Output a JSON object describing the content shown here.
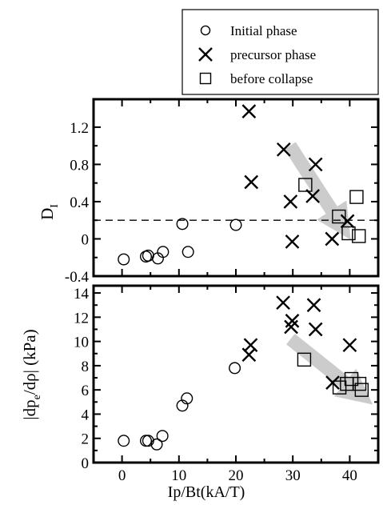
{
  "chart_data": [
    {
      "type": "scatter",
      "title": "",
      "xlabel": "",
      "ylabel": "D_I",
      "ylabel_main": "D",
      "ylabel_sub": "I",
      "xlim": [
        -5,
        45
      ],
      "ylim": [
        -0.4,
        1.5
      ],
      "xticks": [
        0,
        10,
        20,
        30,
        40
      ],
      "yticks": [
        -0.4,
        0,
        0.4,
        0.8,
        1.2
      ],
      "ytick_labels": [
        "-0.4",
        "0",
        "0.4",
        "0.8",
        "1.2"
      ],
      "reference_line": {
        "y": 0.2,
        "style": "dashed"
      },
      "arrow": {
        "from": [
          29.5,
          1.0
        ],
        "to": [
          38.5,
          0.15
        ],
        "color": "#cccccc"
      },
      "series": [
        {
          "name": "Initial phase",
          "marker": "circle",
          "x": [
            0.3,
            4.2,
            4.6,
            6.3,
            7.2,
            10.6,
            11.6,
            20.0
          ],
          "y": [
            -0.22,
            -0.19,
            -0.18,
            -0.21,
            -0.14,
            0.16,
            -0.14,
            0.15
          ]
        },
        {
          "name": "precursor phase",
          "marker": "x",
          "x": [
            22.3,
            22.7,
            28.4,
            29.6,
            29.9,
            33.5,
            34.0,
            36.9,
            39.6
          ],
          "y": [
            1.37,
            0.61,
            0.96,
            0.4,
            -0.03,
            0.46,
            0.8,
            0.0,
            0.19
          ]
        },
        {
          "name": "before collapse",
          "marker": "square",
          "x": [
            32.2,
            38.1,
            39.8,
            41.2,
            41.6
          ],
          "y": [
            0.58,
            0.24,
            0.06,
            0.45,
            0.03
          ]
        }
      ]
    },
    {
      "type": "scatter",
      "title": "",
      "xlabel": "Ip/Bt(kA/T)",
      "ylabel": "|dp_e/dρ| (kPa)",
      "ylabel_part1": "|dp",
      "ylabel_sub": "e",
      "ylabel_part2": "/dρ| (kPa)",
      "xlim": [
        -5,
        45
      ],
      "ylim": [
        0,
        14.6
      ],
      "xticks": [
        0,
        10,
        20,
        30,
        40
      ],
      "xtick_labels": [
        "0",
        "10",
        "20",
        "30",
        "40"
      ],
      "yticks": [
        0,
        2,
        4,
        6,
        8,
        10,
        12,
        14
      ],
      "ytick_labels": [
        "0",
        "2",
        "4",
        "6",
        "8",
        "10",
        "12",
        "14"
      ],
      "arrow": {
        "from": [
          29.6,
          10.2
        ],
        "to": [
          41.6,
          5.7
        ],
        "color": "#cccccc"
      },
      "series": [
        {
          "name": "Initial phase",
          "marker": "circle",
          "x": [
            0.3,
            4.2,
            4.6,
            6.1,
            7.1,
            10.6,
            11.4,
            19.8
          ],
          "y": [
            1.8,
            1.8,
            1.8,
            1.5,
            2.2,
            4.7,
            5.3,
            7.8
          ]
        },
        {
          "name": "precursor phase",
          "marker": "x",
          "x": [
            22.3,
            22.6,
            28.3,
            29.7,
            29.9,
            33.7,
            34.0,
            37.0,
            40.0
          ],
          "y": [
            8.9,
            9.7,
            13.2,
            11.2,
            11.7,
            13.0,
            11.0,
            6.6,
            9.7
          ]
        },
        {
          "name": "before collapse",
          "marker": "square",
          "x": [
            32.0,
            38.2,
            39.5,
            40.3,
            41.7,
            42.1
          ],
          "y": [
            8.5,
            6.2,
            6.5,
            6.9,
            6.5,
            6.0
          ]
        }
      ]
    }
  ],
  "legend": {
    "placement": "top-right",
    "items": [
      {
        "label": "Initial phase",
        "marker": "circle"
      },
      {
        "label": "precursor phase",
        "marker": "x"
      },
      {
        "label": "before collapse",
        "marker": "square"
      }
    ]
  }
}
